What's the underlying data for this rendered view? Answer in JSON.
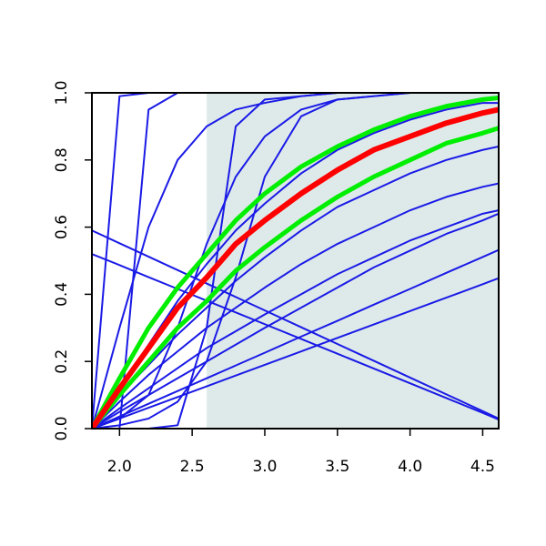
{
  "chart_data": {
    "type": "line",
    "x": [
      1.81,
      2.0,
      2.2,
      2.4,
      2.6,
      2.8,
      3.0,
      3.25,
      3.5,
      3.75,
      4.0,
      4.25,
      4.5,
      4.61
    ],
    "xlim": [
      1.81,
      4.61
    ],
    "ylim": [
      0,
      1
    ],
    "xticks": [
      {
        "value": 2,
        "label": "2.0"
      },
      2.5,
      {
        "value": 3,
        "label": "3.0"
      },
      3.5,
      {
        "value": 4,
        "label": "4.0"
      },
      4.5
    ],
    "yticks": [
      {
        "value": 0,
        "label": "0.0"
      },
      0.2,
      0.4,
      0.6,
      0.8,
      {
        "value": 1,
        "label": "1.0"
      }
    ],
    "shaded_xrange": [
      2.6,
      4.61
    ],
    "shade_color": "#deeaea",
    "series": [
      {
        "color": "#1a1ae6",
        "values": [
          0,
          0.99,
          1,
          1,
          1,
          1,
          1,
          1,
          1,
          1,
          1,
          1,
          1,
          1
        ]
      },
      {
        "color": "#1a1ae6",
        "values": [
          0,
          0.3,
          0.6,
          0.8,
          0.9,
          0.95,
          0.97,
          0.99,
          1,
          1,
          1,
          1,
          1,
          1
        ]
      },
      {
        "color": "#1a1ae6",
        "values": [
          0,
          0,
          0.95,
          1,
          1,
          1,
          1,
          1,
          1,
          1,
          1,
          1,
          1,
          1
        ]
      },
      {
        "color": "#1a1ae6",
        "values": [
          0,
          0,
          0,
          0.01,
          0.3,
          0.9,
          0.98,
          0.99,
          1,
          1,
          1,
          1,
          1,
          1
        ]
      },
      {
        "color": "#1a1ae6",
        "values": [
          0,
          0.03,
          0.1,
          0.3,
          0.55,
          0.75,
          0.87,
          0.95,
          0.98,
          0.99,
          1,
          1,
          1,
          1
        ]
      },
      {
        "color": "#1a1ae6",
        "values": [
          0,
          0.01,
          0.03,
          0.08,
          0.2,
          0.45,
          0.75,
          0.93,
          0.98,
          0.99,
          1,
          1,
          1,
          1
        ]
      },
      {
        "color": "#1a1ae6",
        "values": [
          0.59,
          0.552,
          0.512,
          0.472,
          0.432,
          0.392,
          0.352,
          0.302,
          0.252,
          0.202,
          0.152,
          0.102,
          0.052,
          0.03
        ]
      },
      {
        "color": "#1a1ae6",
        "values": [
          0.52,
          0.487,
          0.451,
          0.416,
          0.381,
          0.346,
          0.311,
          0.267,
          0.223,
          0.179,
          0.135,
          0.091,
          0.047,
          0.027
        ]
      },
      {
        "color": "#1a1ae6",
        "values": [
          0,
          0.036,
          0.074,
          0.112,
          0.15,
          0.188,
          0.226,
          0.274,
          0.321,
          0.369,
          0.416,
          0.464,
          0.511,
          0.532
        ]
      },
      {
        "color": "#1a1ae6",
        "values": [
          0,
          0.03,
          0.062,
          0.094,
          0.126,
          0.158,
          0.19,
          0.23,
          0.27,
          0.31,
          0.35,
          0.39,
          0.43,
          0.448
        ]
      },
      {
        "color": "#1a1ae6",
        "values": [
          0,
          0.08,
          0.16,
          0.23,
          0.3,
          0.36,
          0.42,
          0.49,
          0.55,
          0.6,
          0.65,
          0.69,
          0.72,
          0.73
        ]
      },
      {
        "color": "#1a1ae6",
        "values": [
          0,
          0.06,
          0.12,
          0.18,
          0.24,
          0.29,
          0.34,
          0.4,
          0.46,
          0.51,
          0.56,
          0.6,
          0.64,
          0.65
        ]
      },
      {
        "color": "#1a1ae6",
        "values": [
          0,
          0.1,
          0.19,
          0.28,
          0.36,
          0.44,
          0.51,
          0.59,
          0.66,
          0.71,
          0.76,
          0.8,
          0.83,
          0.84
        ]
      },
      {
        "color": "#1a1ae6",
        "values": [
          0,
          0.12,
          0.25,
          0.38,
          0.49,
          0.59,
          0.67,
          0.76,
          0.83,
          0.88,
          0.92,
          0.95,
          0.97,
          0.97
        ]
      },
      {
        "color": "#1a1ae6",
        "values": [
          0,
          0.05,
          0.1,
          0.15,
          0.2,
          0.25,
          0.3,
          0.36,
          0.42,
          0.48,
          0.53,
          0.58,
          0.62,
          0.64
        ]
      },
      {
        "color": "#00ee00",
        "width": 5,
        "values": [
          0,
          0.15,
          0.3,
          0.42,
          0.52,
          0.62,
          0.7,
          0.78,
          0.84,
          0.89,
          0.93,
          0.96,
          0.98,
          0.985
        ]
      },
      {
        "color": "#00ee00",
        "width": 5,
        "values": [
          0,
          0.1,
          0.2,
          0.3,
          0.38,
          0.47,
          0.54,
          0.62,
          0.69,
          0.75,
          0.8,
          0.85,
          0.88,
          0.895
        ]
      },
      {
        "color": "#ff0000",
        "width": 6,
        "values": [
          0,
          0.12,
          0.24,
          0.36,
          0.45,
          0.55,
          0.62,
          0.7,
          0.77,
          0.83,
          0.87,
          0.91,
          0.94,
          0.95
        ]
      }
    ]
  }
}
